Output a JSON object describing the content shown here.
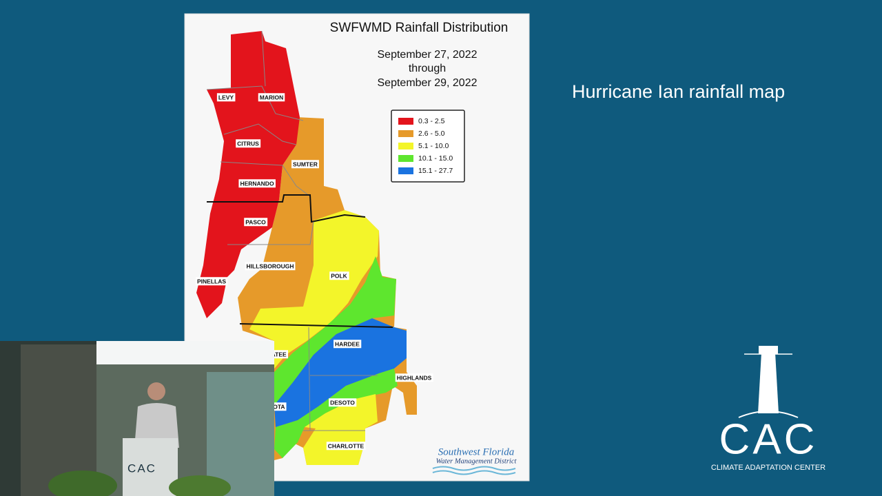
{
  "slide": {
    "title": "Hurricane Ian rainfall map"
  },
  "map": {
    "title": "SWFWMD Rainfall Distribution",
    "date_lines": [
      "September 27, 2022",
      "through",
      "September 29, 2022"
    ],
    "legend": [
      {
        "label": "0.3 - 2.5",
        "color": "#e3141c"
      },
      {
        "label": "2.6 - 5.0",
        "color": "#e69a2a"
      },
      {
        "label": "5.1 - 10.0",
        "color": "#f3f52a"
      },
      {
        "label": "10.1 - 15.0",
        "color": "#5ee62e"
      },
      {
        "label": "15.1 - 27.7",
        "color": "#1a73e0"
      }
    ],
    "counties": [
      "LEVY",
      "MARION",
      "CITRUS",
      "SUMTER",
      "HERNANDO",
      "PASCO",
      "HILLSBOROUGH",
      "PINELLAS",
      "POLK",
      "MANATEE",
      "HARDEE",
      "HIGHLANDS",
      "SARASOTA",
      "DESOTO",
      "CHARLOTTE"
    ],
    "source": [
      "Southwest Florida",
      "Water Management District"
    ]
  },
  "logo": {
    "name": "CAC",
    "subtitle": "CLIMATE ADAPTATION CENTER"
  },
  "video": {
    "podium_text": "CAC"
  }
}
